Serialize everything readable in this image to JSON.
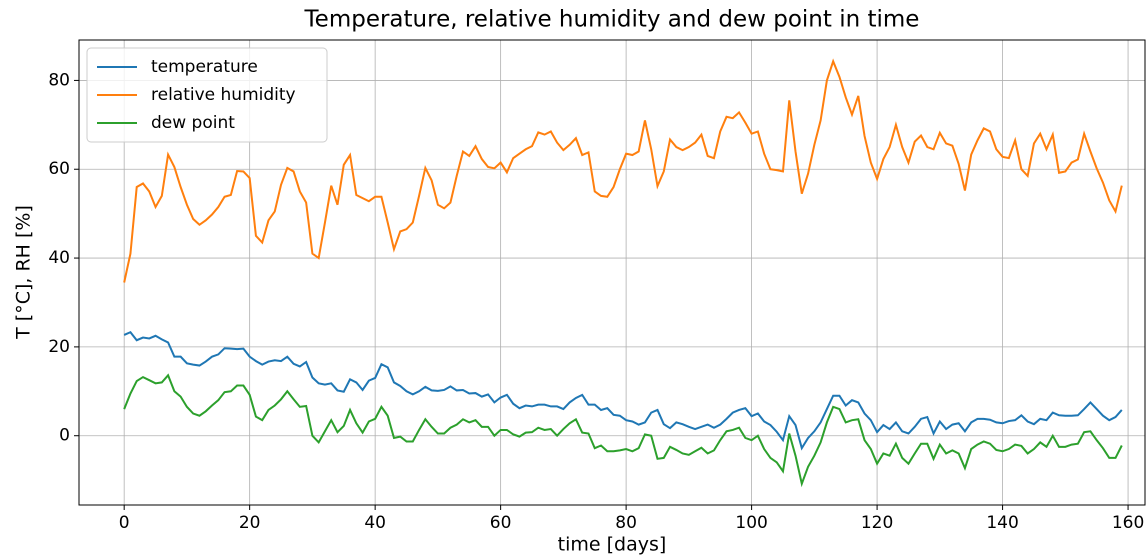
{
  "chart_data": {
    "type": "line",
    "title": "Temperature, relative humidity and dew point in time",
    "x_label": "time [days]",
    "y_label": "T [°C], RH [%]",
    "x": [
      0,
      1,
      2,
      3,
      4,
      5,
      6,
      7,
      8,
      9,
      10,
      11,
      12,
      13,
      14,
      15,
      16,
      17,
      18,
      19,
      20,
      21,
      22,
      23,
      24,
      25,
      26,
      27,
      28,
      29,
      30,
      31,
      32,
      33,
      34,
      35,
      36,
      37,
      38,
      39,
      40,
      41,
      42,
      43,
      44,
      45,
      46,
      47,
      48,
      49,
      50,
      51,
      52,
      53,
      54,
      55,
      56,
      57,
      58,
      59,
      60,
      61,
      62,
      63,
      64,
      65,
      66,
      67,
      68,
      69,
      70,
      71,
      72,
      73,
      74,
      75,
      76,
      77,
      78,
      79,
      80,
      81,
      82,
      83,
      84,
      85,
      86,
      87,
      88,
      89,
      90,
      91,
      92,
      93,
      94,
      95,
      96,
      97,
      98,
      99,
      100,
      101,
      102,
      103,
      104,
      105,
      106,
      107,
      108,
      109,
      110,
      111,
      112,
      113,
      114,
      115,
      116,
      117,
      118,
      119,
      120,
      121,
      122,
      123,
      124,
      125,
      126,
      127,
      128,
      129,
      130,
      131,
      132,
      133,
      134,
      135,
      136,
      137,
      138,
      139,
      140,
      141,
      142,
      143,
      144,
      145,
      146,
      147,
      148,
      149,
      150,
      151,
      152,
      153,
      154,
      155,
      156,
      157,
      158,
      159
    ],
    "series": [
      {
        "name": "temperature",
        "color": "#1f77b4",
        "values": [
          22.7,
          23.3,
          21.5,
          22.1,
          21.9,
          22.5,
          21.7,
          21.0,
          17.8,
          17.8,
          16.3,
          16.0,
          15.8,
          16.7,
          17.8,
          18.3,
          19.7,
          19.6,
          19.5,
          19.6,
          17.8,
          16.8,
          16.0,
          16.7,
          17.0,
          16.8,
          17.8,
          16.2,
          15.6,
          16.6,
          13.1,
          11.8,
          11.5,
          11.8,
          10.2,
          9.9,
          12.7,
          12.0,
          10.3,
          12.4,
          13.0,
          16.1,
          15.4,
          12.0,
          11.2,
          10.0,
          9.3,
          10.0,
          11.0,
          10.2,
          10.1,
          10.3,
          11.1,
          10.2,
          10.3,
          9.5,
          9.6,
          8.8,
          9.3,
          7.5,
          8.6,
          9.2,
          7.2,
          6.2,
          6.8,
          6.6,
          7.0,
          7.0,
          6.6,
          6.6,
          6.0,
          7.5,
          8.5,
          9.2,
          7.0,
          7.0,
          5.8,
          6.2,
          4.7,
          4.5,
          3.5,
          3.2,
          2.5,
          3.0,
          5.2,
          5.8,
          2.6,
          1.7,
          3.0,
          2.6,
          2.0,
          1.5,
          2.0,
          2.5,
          1.8,
          2.5,
          3.8,
          5.2,
          5.8,
          6.2,
          4.4,
          5.0,
          3.2,
          2.4,
          0.9,
          -1.0,
          4.4,
          2.4,
          -2.8,
          -0.5,
          1.0,
          3.0,
          6.0,
          9.0,
          9.0,
          6.8,
          8.0,
          7.5,
          5.0,
          3.5,
          0.8,
          2.4,
          1.5,
          3.0,
          1.0,
          0.5,
          2.0,
          3.8,
          4.2,
          0.5,
          3.2,
          1.5,
          2.5,
          2.8,
          1.0,
          3.0,
          3.8,
          3.8,
          3.6,
          3.0,
          2.8,
          3.3,
          3.5,
          4.6,
          3.2,
          2.6,
          3.8,
          3.5,
          5.2,
          4.6,
          4.5,
          4.5,
          4.6,
          6.0,
          7.5,
          6.0,
          4.5,
          3.5,
          4.2,
          5.8
        ]
      },
      {
        "name": "relative humidity",
        "color": "#ff7f0e",
        "values": [
          34.5,
          41,
          56,
          56.8,
          55,
          51.5,
          54,
          63.3,
          60.5,
          56,
          52,
          48.8,
          47.5,
          48.5,
          49.8,
          51.5,
          53.8,
          54.2,
          59.6,
          59.5,
          58,
          45,
          43.5,
          48.5,
          50.5,
          56.5,
          60.3,
          59.5,
          55,
          52.5,
          41,
          40,
          48,
          56.3,
          52,
          61,
          63.2,
          54.2,
          53.5,
          52.8,
          53.8,
          53.8,
          48,
          42,
          46,
          46.5,
          48,
          54,
          60.3,
          57.5,
          52,
          51.2,
          52.5,
          58.5,
          64,
          63,
          65.2,
          62.3,
          60.5,
          60.2,
          61.5,
          59.3,
          62.5,
          63.5,
          64.5,
          65.2,
          68.3,
          67.8,
          68.5,
          66,
          64.3,
          65.5,
          67,
          63.2,
          63.8,
          55,
          54,
          53.8,
          56,
          60,
          63.5,
          63.2,
          64,
          71,
          64.5,
          56.2,
          59.5,
          66.7,
          65,
          64.3,
          65,
          66,
          67.8,
          63,
          62.5,
          68.5,
          71.8,
          71.5,
          72.8,
          70.5,
          68,
          68.5,
          63.5,
          60,
          59.8,
          59.5,
          75.5,
          64,
          54.5,
          59,
          65.5,
          71,
          80,
          84.3,
          80.8,
          76.2,
          72.3,
          76.5,
          67.5,
          61.5,
          57.8,
          62.3,
          65,
          70,
          65,
          61.5,
          66.2,
          67.6,
          65,
          64.5,
          68.2,
          65.8,
          65.3,
          61.2,
          55.2,
          63.3,
          66.5,
          69.2,
          68.5,
          64.5,
          62.8,
          62.5,
          66.5,
          60,
          58.5,
          65.8,
          68,
          64.5,
          67.8,
          59.2,
          59.5,
          61.5,
          62.2,
          68,
          64,
          60.2,
          57,
          53,
          50.5,
          56.3
        ]
      },
      {
        "name": "dew point",
        "color": "#2ca02c",
        "values": [
          6,
          9.5,
          12.3,
          13.2,
          12.5,
          11.8,
          12.0,
          13.6,
          10.0,
          8.8,
          6.5,
          5.0,
          4.5,
          5.5,
          6.8,
          8.0,
          9.8,
          10.0,
          11.3,
          11.3,
          9.2,
          4.3,
          3.5,
          5.8,
          6.8,
          8.2,
          10.0,
          8.2,
          6.5,
          6.7,
          0,
          -1.5,
          1.0,
          3.5,
          0.8,
          2.2,
          5.8,
          2.8,
          0.7,
          3.2,
          3.8,
          6.5,
          4.5,
          -0.5,
          -0.2,
          -1.3,
          -1.3,
          1.3,
          3.7,
          2.0,
          0.5,
          0.5,
          1.8,
          2.5,
          3.7,
          3.0,
          3.5,
          2.0,
          2.0,
          0,
          1.3,
          1.3,
          0.3,
          -0.2,
          0.7,
          0.8,
          1.8,
          1.3,
          1.5,
          0,
          1.5,
          2.8,
          3.7,
          0.7,
          0.5,
          -2.8,
          -2.2,
          -3.5,
          -3.5,
          -3.3,
          -3.0,
          -3.5,
          -2.8,
          0.3,
          0,
          -5.2,
          -5.0,
          -2.5,
          -3.2,
          -4.0,
          -4.3,
          -3.5,
          -2.7,
          -4.0,
          -3.3,
          -1.0,
          1.0,
          1.3,
          1.8,
          -0.5,
          -1.0,
          0,
          -3.0,
          -5.0,
          -6.0,
          -8.0,
          0.5,
          -4.5,
          -10.8,
          -7.0,
          -4.5,
          -1.5,
          3.0,
          6.5,
          6.0,
          3.0,
          3.5,
          3.7,
          -1.0,
          -3.0,
          -6.3,
          -4.0,
          -4.5,
          -1.8,
          -5.0,
          -6.3,
          -4.0,
          -1.8,
          -1.8,
          -5.2,
          -2.0,
          -4.0,
          -3.3,
          -4.0,
          -7.3,
          -3.0,
          -2.0,
          -1.3,
          -1.8,
          -3.2,
          -3.5,
          -3.0,
          -2.0,
          -2.3,
          -4.0,
          -3.0,
          -1.5,
          -2.5,
          0,
          -2.5,
          -2.5,
          -2.0,
          -1.8,
          0.8,
          1.0,
          -1.0,
          -2.8,
          -5.0,
          -5.0,
          -2.2
        ]
      }
    ],
    "xlim": [
      -7.2,
      162.7
    ],
    "ylim": [
      -15.6,
      89.1
    ],
    "xticks": [
      0,
      20,
      40,
      60,
      80,
      100,
      120,
      140,
      160
    ],
    "yticks": [
      0,
      20,
      40,
      60,
      80
    ],
    "grid": true,
    "legend": "upper left"
  }
}
